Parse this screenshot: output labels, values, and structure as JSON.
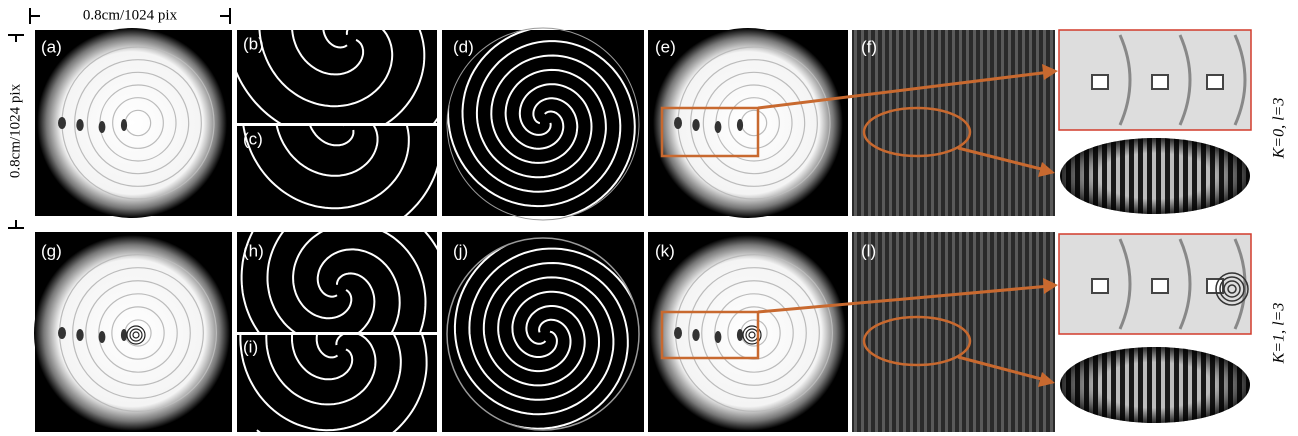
{
  "scale_bar": {
    "horizontal": "0.8cm/1024 pix",
    "vertical": "0.8cm/1024 pix"
  },
  "panels": {
    "labels": [
      "(a)",
      "(b)",
      "(c)",
      "(d)",
      "(e)",
      "(f)",
      "(g)",
      "(h)",
      "(i)",
      "(j)",
      "(k)",
      "(l)"
    ]
  },
  "rows": {
    "labels": [
      "K=0, l=3",
      "K=1, l=3"
    ]
  }
}
